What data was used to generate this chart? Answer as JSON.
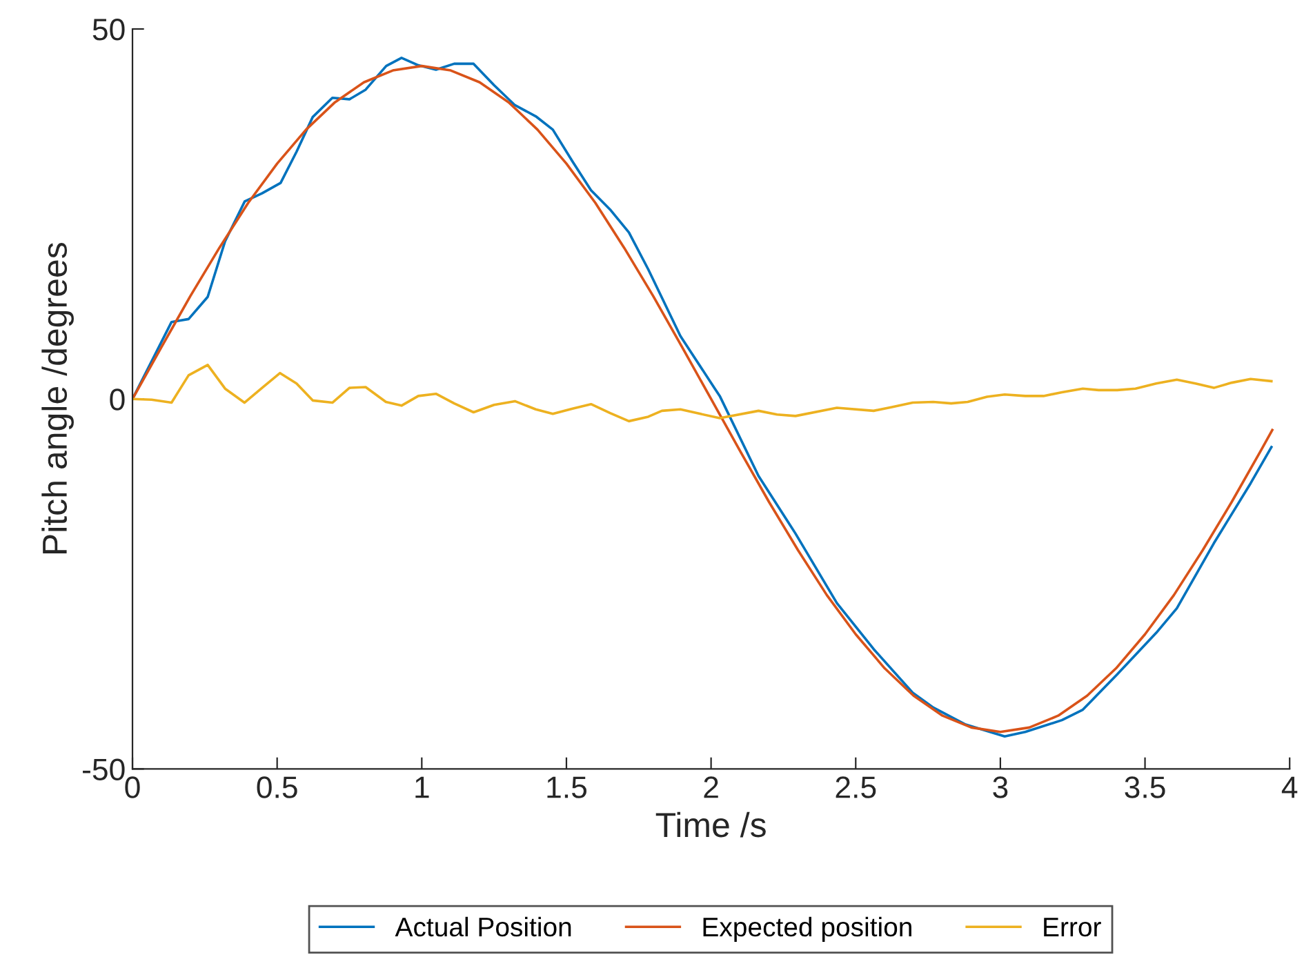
{
  "chart_data": {
    "type": "line",
    "xlabel": "Time /s",
    "ylabel": "Pitch angle /degrees",
    "xlim": [
      0,
      4
    ],
    "xticks": [
      0,
      0.5,
      1,
      1.5,
      2,
      2.5,
      3,
      3.5,
      4
    ],
    "ylim": [
      -50,
      50
    ],
    "yticks": [
      -50,
      0,
      50
    ],
    "grid": false,
    "legend": "bottom",
    "line_style": "solid",
    "marker": "none",
    "series": [
      {
        "name": "Actual Position",
        "color": "#0072bd",
        "x": [
          0,
          0.135,
          0.194,
          0.26,
          0.32,
          0.388,
          0.448,
          0.512,
          0.567,
          0.623,
          0.691,
          0.75,
          0.806,
          0.877,
          0.93,
          0.988,
          1.049,
          1.112,
          1.179,
          1.25,
          1.322,
          1.394,
          1.453,
          1.521,
          1.585,
          1.651,
          1.716,
          1.783,
          1.894,
          2.013,
          2.03,
          2.164,
          2.292,
          2.435,
          2.562,
          2.697,
          2.768,
          2.88,
          3.015,
          3.086,
          3.213,
          3.285,
          3.404,
          3.539,
          3.61,
          3.738,
          3.865,
          3.937
        ],
        "values": [
          0,
          10.4,
          10.8,
          13.8,
          21.3,
          26.7,
          27.8,
          29.2,
          33.4,
          38.1,
          40.7,
          40.5,
          41.8,
          45.0,
          46.1,
          45.1,
          44.5,
          45.3,
          45.3,
          42.4,
          39.7,
          38.2,
          36.4,
          32.1,
          28.2,
          25.6,
          22.5,
          17.5,
          8.5,
          1.4,
          0.4,
          -10.4,
          -18.2,
          -27.6,
          -33.8,
          -39.7,
          -41.7,
          -44.0,
          -45.6,
          -45.0,
          -43.4,
          -42.0,
          -37.2,
          -31.6,
          -28.3,
          -19.5,
          -11.4,
          -6.5
        ]
      },
      {
        "name": "Expected position",
        "color": "#d95319",
        "x": [
          0,
          0.1,
          0.2,
          0.3,
          0.4,
          0.5,
          0.6,
          0.7,
          0.8,
          0.9,
          1.0,
          1.1,
          1.2,
          1.3,
          1.4,
          1.5,
          1.6,
          1.7,
          1.8,
          1.9,
          2.0,
          2.1,
          2.2,
          2.3,
          2.4,
          2.5,
          2.6,
          2.7,
          2.8,
          2.9,
          3.0,
          3.1,
          3.2,
          3.3,
          3.4,
          3.5,
          3.6,
          3.7,
          3.8,
          3.9,
          3.94
        ],
        "values": [
          0,
          7.0,
          13.9,
          20.4,
          26.5,
          31.8,
          36.4,
          40.1,
          42.8,
          44.4,
          45.0,
          44.4,
          42.8,
          40.1,
          36.4,
          31.8,
          26.5,
          20.4,
          13.9,
          7.0,
          0,
          -7.0,
          -13.9,
          -20.4,
          -26.5,
          -31.8,
          -36.4,
          -40.1,
          -42.8,
          -44.4,
          -45.0,
          -44.4,
          -42.8,
          -40.1,
          -36.4,
          -31.8,
          -26.5,
          -20.4,
          -13.9,
          -7.0,
          -4.2
        ]
      },
      {
        "name": "Error",
        "color": "#edb120",
        "x": [
          0,
          0.066,
          0.135,
          0.194,
          0.26,
          0.32,
          0.387,
          0.448,
          0.51,
          0.567,
          0.623,
          0.691,
          0.75,
          0.806,
          0.876,
          0.93,
          0.988,
          1.049,
          1.112,
          1.179,
          1.25,
          1.322,
          1.394,
          1.453,
          1.521,
          1.585,
          1.651,
          1.716,
          1.783,
          1.83,
          1.894,
          1.95,
          2.03,
          2.164,
          2.228,
          2.292,
          2.435,
          2.562,
          2.625,
          2.697,
          2.768,
          2.83,
          2.887,
          2.954,
          3.015,
          3.086,
          3.149,
          3.213,
          3.285,
          3.34,
          3.404,
          3.467,
          3.539,
          3.61,
          3.674,
          3.738,
          3.8,
          3.865,
          3.937
        ],
        "values": [
          0,
          -0.1,
          -0.5,
          3.2,
          4.6,
          1.4,
          -0.5,
          1.5,
          3.5,
          2.1,
          -0.2,
          -0.5,
          1.5,
          1.6,
          -0.4,
          -0.9,
          0.4,
          0.7,
          -0.6,
          -1.8,
          -0.8,
          -0.3,
          -1.4,
          -2.0,
          -1.3,
          -0.7,
          -1.9,
          -3.0,
          -2.4,
          -1.6,
          -1.4,
          -1.9,
          -2.6,
          -1.6,
          -2.1,
          -2.3,
          -1.2,
          -1.6,
          -1.1,
          -0.5,
          -0.4,
          -0.6,
          -0.4,
          0.3,
          0.6,
          0.4,
          0.4,
          0.9,
          1.4,
          1.2,
          1.2,
          1.4,
          2.1,
          2.6,
          2.1,
          1.5,
          2.2,
          2.7,
          2.4
        ]
      }
    ]
  }
}
